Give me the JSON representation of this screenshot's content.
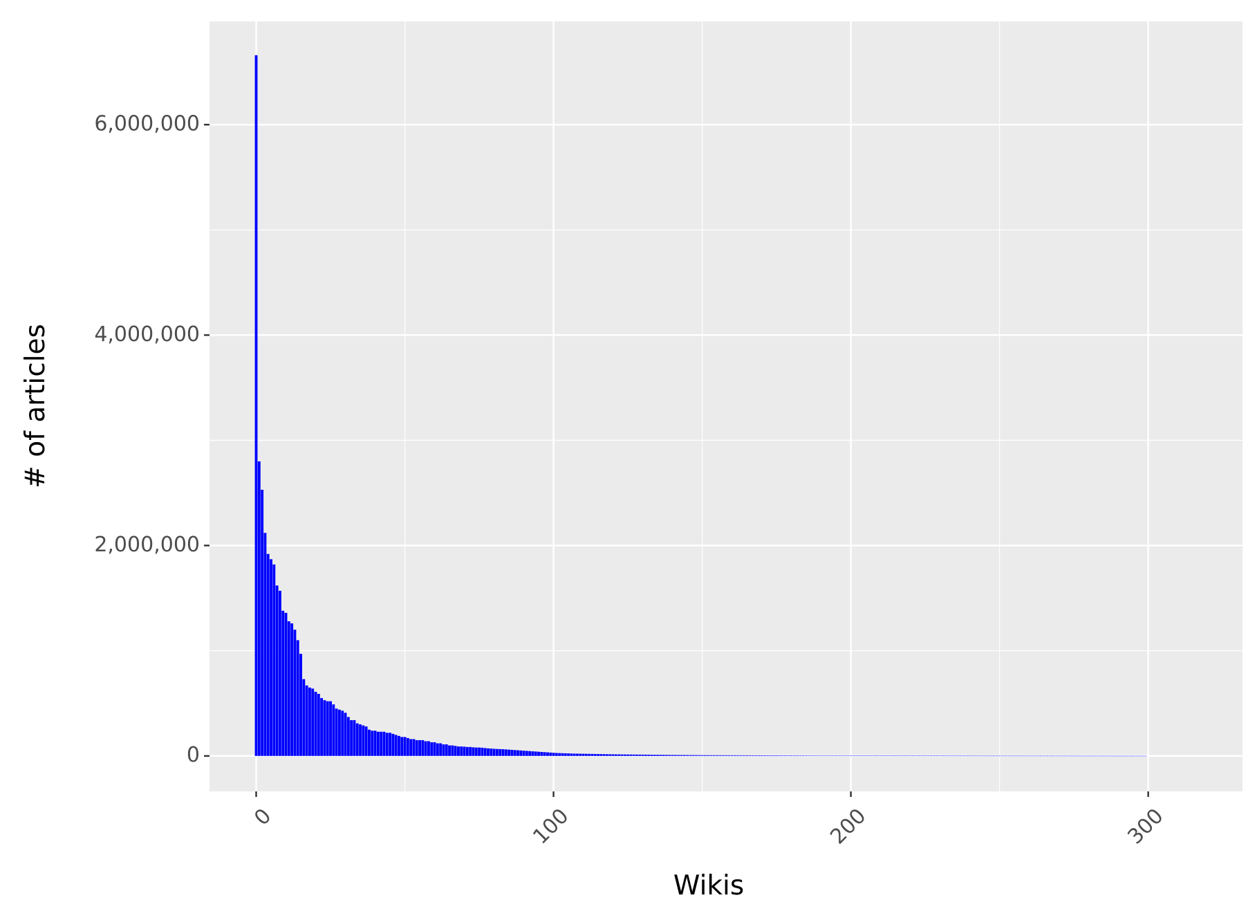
{
  "chart_data": {
    "type": "bar",
    "x_label": "Wikis",
    "y_label": "# of articles",
    "color": "#0000ff",
    "bar_width": 0.9,
    "panel_color": "#ebebeb",
    "grid": true,
    "xlim": [
      -15.7,
      331.7
    ],
    "ylim": [
      -337000,
      6981000
    ],
    "xticks": [
      0,
      100,
      200,
      300
    ],
    "yticks": [
      {
        "value": 0,
        "label": "0"
      },
      {
        "value": 2000000,
        "label": "2,000,000"
      },
      {
        "value": 4000000,
        "label": "4,000,000"
      },
      {
        "value": 6000000,
        "label": "6,000,000"
      }
    ],
    "x_minor_ticks": [
      50,
      150,
      250
    ],
    "y_minor_ticks": [
      1000000,
      3000000,
      5000000
    ],
    "x": [
      0,
      1,
      2,
      3,
      4,
      5,
      6,
      7,
      8,
      9,
      10,
      11,
      12,
      13,
      14,
      15,
      16,
      17,
      18,
      19,
      20,
      21,
      22,
      23,
      24,
      25,
      26,
      27,
      28,
      29,
      30,
      31,
      32,
      33,
      34,
      35,
      36,
      37,
      38,
      39,
      40,
      41,
      42,
      43,
      44,
      45,
      46,
      47,
      48,
      49,
      50,
      51,
      52,
      53,
      54,
      55,
      56,
      57,
      58,
      59,
      60,
      61,
      62,
      63,
      64,
      65,
      66,
      67,
      68,
      69,
      70,
      71,
      72,
      73,
      74,
      75,
      76,
      77,
      78,
      79,
      80,
      81,
      82,
      83,
      84,
      85,
      86,
      87,
      88,
      89,
      90,
      91,
      92,
      93,
      94,
      95,
      96,
      97,
      98,
      99,
      100,
      101,
      102,
      103,
      104,
      105,
      106,
      107,
      108,
      109,
      110,
      111,
      112,
      113,
      114,
      115,
      116,
      117,
      118,
      119,
      120,
      121,
      122,
      123,
      124,
      125,
      126,
      127,
      128,
      129,
      130,
      131,
      132,
      133,
      134,
      135,
      136,
      137,
      138,
      139,
      140,
      141,
      142,
      143,
      144,
      145,
      146,
      147,
      148,
      149,
      150,
      151,
      152,
      153,
      154,
      155,
      156,
      157,
      158,
      159,
      160,
      161,
      162,
      163,
      164,
      165,
      166,
      167,
      168,
      169,
      170,
      171,
      172,
      173,
      174,
      175,
      176,
      177,
      178,
      179,
      180,
      181,
      182,
      183,
      184,
      185,
      186,
      187,
      188,
      189,
      190,
      191,
      192,
      193,
      194,
      195,
      196,
      197,
      198,
      199,
      200,
      201,
      202,
      203,
      204,
      205,
      206,
      207,
      208,
      209,
      210,
      211,
      212,
      213,
      214,
      215,
      216,
      217,
      218,
      219,
      220,
      221,
      222,
      223,
      224,
      225,
      226,
      227,
      228,
      229,
      230,
      231,
      232,
      233,
      234,
      235,
      236,
      237,
      238,
      239,
      240,
      241,
      242,
      243,
      244,
      245,
      246,
      247,
      248,
      249,
      250,
      251,
      252,
      253,
      254,
      255,
      256,
      257,
      258,
      259,
      260,
      261,
      262,
      263,
      264,
      265,
      266,
      267,
      268,
      269,
      270,
      271,
      272,
      273,
      274,
      275,
      276,
      277,
      278,
      279,
      280,
      281,
      282,
      283,
      284,
      285,
      286,
      287,
      288,
      289,
      290,
      291,
      292,
      293,
      294,
      295,
      296,
      297,
      298,
      299
    ],
    "values": [
      6660000,
      2800000,
      2530000,
      2120000,
      1920000,
      1870000,
      1820000,
      1620000,
      1570000,
      1380000,
      1360000,
      1280000,
      1260000,
      1200000,
      1100000,
      970000,
      730000,
      670000,
      650000,
      640000,
      610000,
      590000,
      550000,
      530000,
      520000,
      520000,
      490000,
      450000,
      440000,
      430000,
      410000,
      370000,
      340000,
      340000,
      310000,
      300000,
      290000,
      280000,
      250000,
      240000,
      240000,
      230000,
      230000,
      230000,
      220000,
      220000,
      210000,
      200000,
      190000,
      180000,
      180000,
      170000,
      160000,
      160000,
      150000,
      150000,
      150000,
      140000,
      140000,
      130000,
      130000,
      120000,
      120000,
      110000,
      110000,
      100000,
      100000,
      95000,
      90000,
      90000,
      88000,
      85000,
      85000,
      82000,
      80000,
      80000,
      78000,
      75000,
      72000,
      70000,
      68000,
      66000,
      65000,
      64000,
      62000,
      60000,
      58000,
      56000,
      54000,
      52000,
      50000,
      48000,
      46000,
      44000,
      42000,
      40000,
      38000,
      36000,
      34000,
      32000,
      30000,
      28000,
      27000,
      26000,
      25000,
      24000,
      23000,
      22000,
      21500,
      21000,
      20500,
      20000,
      19500,
      19000,
      18500,
      18000,
      17500,
      17000,
      16500,
      16000,
      15500,
      15000,
      14700,
      14400,
      14100,
      13800,
      13500,
      13200,
      12900,
      12600,
      12300,
      12000,
      11700,
      11400,
      11100,
      10800,
      10500,
      10200,
      9900,
      9600,
      9300,
      9000,
      8800,
      8600,
      8400,
      8200,
      8000,
      7800,
      7600,
      7400,
      7200,
      7000,
      6900,
      6800,
      6700,
      6600,
      6500,
      6400,
      6300,
      6200,
      6100,
      6000,
      5900,
      5800,
      5700,
      5600,
      5500,
      5400,
      5300,
      5200,
      5100,
      5000,
      4900,
      4800,
      4700,
      4600,
      4500,
      4400,
      4300,
      4200,
      4100,
      4000,
      3900,
      3800,
      3700,
      3600,
      3500,
      3400,
      3300,
      3200,
      3100,
      3000,
      2900,
      2800,
      2700,
      2600,
      2500,
      2400,
      2300,
      2200,
      2100,
      2000,
      1980,
      1960,
      1940,
      1920,
      1900,
      1880,
      1860,
      1840,
      1820,
      1800,
      1780,
      1760,
      1740,
      1720,
      1700,
      1680,
      1660,
      1640,
      1620,
      1600,
      1580,
      1560,
      1540,
      1520,
      1500,
      1480,
      1460,
      1440,
      1420,
      1400,
      1380,
      1360,
      1340,
      1320,
      1300,
      1280,
      1260,
      1240,
      1220,
      1200,
      1180,
      1160,
      1140,
      1120,
      1100,
      1080,
      1060,
      1040,
      1020,
      1000,
      980,
      960,
      940,
      920,
      900,
      880,
      860,
      840,
      820,
      800,
      780,
      760,
      740,
      720,
      700,
      680,
      660,
      640,
      620,
      600,
      580,
      560,
      540,
      520,
      500,
      480,
      460,
      440,
      420,
      400,
      380,
      360,
      340,
      320,
      300,
      280,
      260,
      240,
      220,
      200,
      180,
      160,
      140,
      120,
      100,
      80,
      60,
      40
    ]
  }
}
